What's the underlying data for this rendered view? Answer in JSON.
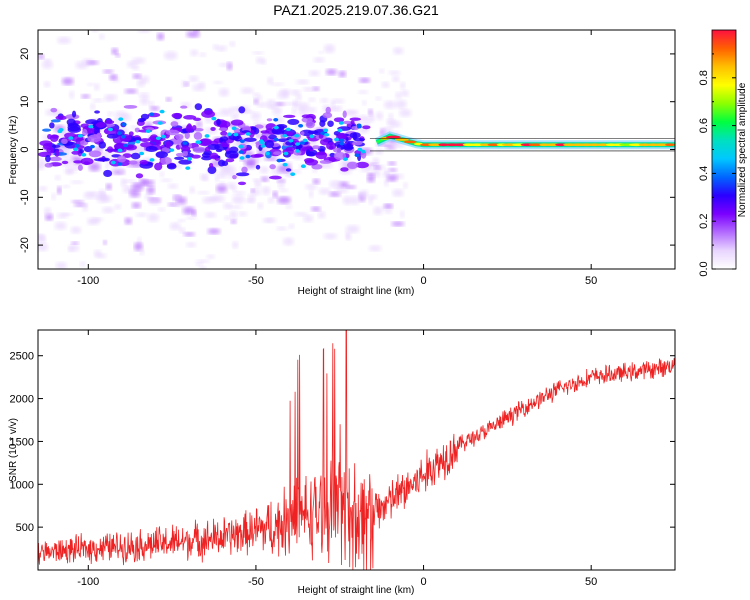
{
  "title": "PAZ1.2025.219.07.36.G21",
  "chart_data": [
    {
      "type": "heatmap",
      "xlabel": "Height of straight line (km)",
      "ylabel": "Frequency (Hz)",
      "xlim": [
        -115,
        75
      ],
      "ylim": [
        -25,
        25
      ],
      "xticks": [
        -100,
        -50,
        0,
        50
      ],
      "yticks": [
        -20,
        -10,
        0,
        10,
        20
      ],
      "colorbar": {
        "label": "Normalized spectral amplitude",
        "range": [
          0,
          1
        ],
        "ticks": [
          "0.0",
          "0.2",
          "0.4",
          "0.6",
          "0.8"
        ],
        "colormap": [
          "#ffffff",
          "#e8d5ff",
          "#b36bff",
          "#7a00ff",
          "#2a00ff",
          "#0066ff",
          "#00c8ff",
          "#00e0c0",
          "#00ff40",
          "#8cff00",
          "#ffff00",
          "#ffc000",
          "#ff6000",
          "#ff1040"
        ]
      },
      "trace": [
        {
          "x": -14,
          "y": 1.5
        },
        {
          "x": -10,
          "y": 2.8
        },
        {
          "x": -6,
          "y": 2.0
        },
        {
          "x": -2,
          "y": 1.2
        },
        {
          "x": 0,
          "y": 1.0
        },
        {
          "x": 75,
          "y": 1.0
        }
      ]
    },
    {
      "type": "line",
      "xlabel": "Height of straight line (km)",
      "ylabel": "SNR (10 * v/v)",
      "xlim": [
        -115,
        75
      ],
      "ylim": [
        0,
        2800
      ],
      "xticks": [
        -100,
        -50,
        0,
        50
      ],
      "yticks": [
        500,
        1000,
        1500,
        2000,
        2500
      ],
      "color": "#ee2222",
      "trend": [
        {
          "x": -115,
          "y": 200
        },
        {
          "x": -100,
          "y": 250
        },
        {
          "x": -80,
          "y": 300
        },
        {
          "x": -60,
          "y": 380
        },
        {
          "x": -45,
          "y": 500
        },
        {
          "x": -35,
          "y": 650
        },
        {
          "x": -25,
          "y": 700
        },
        {
          "x": -18,
          "y": 600
        },
        {
          "x": -10,
          "y": 800
        },
        {
          "x": 0,
          "y": 1100
        },
        {
          "x": 10,
          "y": 1450
        },
        {
          "x": 20,
          "y": 1650
        },
        {
          "x": 30,
          "y": 1900
        },
        {
          "x": 40,
          "y": 2100
        },
        {
          "x": 50,
          "y": 2250
        },
        {
          "x": 60,
          "y": 2300
        },
        {
          "x": 70,
          "y": 2350
        },
        {
          "x": 75,
          "y": 2400
        }
      ],
      "peak": {
        "x": -23,
        "y": 2800
      }
    }
  ]
}
